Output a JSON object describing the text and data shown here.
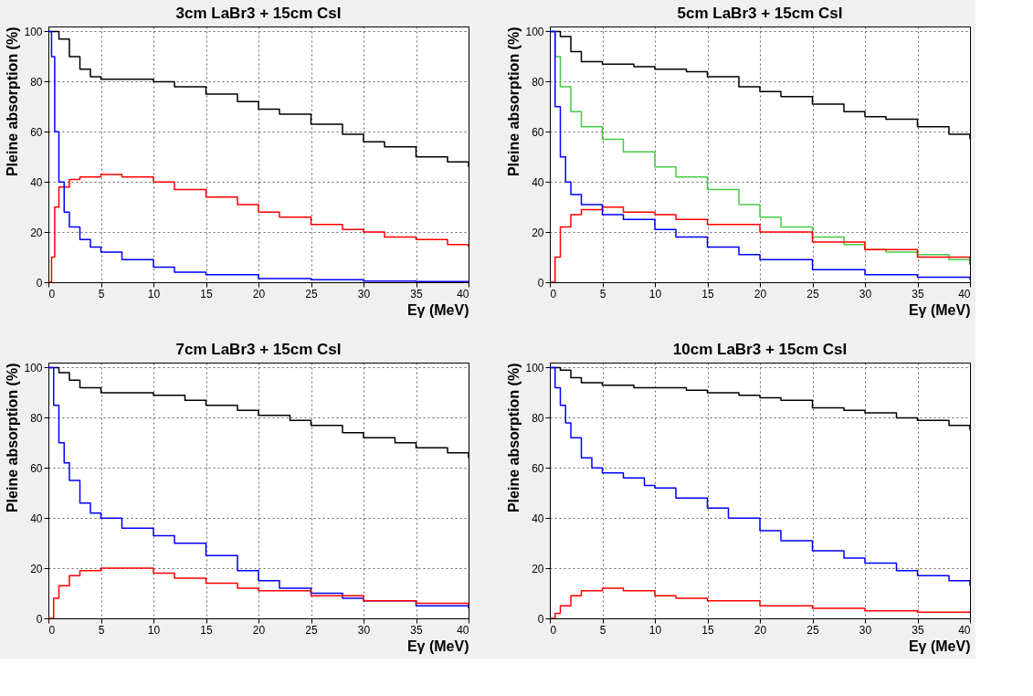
{
  "chart_data": [
    {
      "type": "step",
      "title": "3cm LaBr3 + 15cm CsI",
      "xlabel": "Eγ (MeV)",
      "ylabel": "Pleine absorption (%)",
      "xlim": [
        0,
        40
      ],
      "ylim": [
        0,
        102
      ],
      "xticks": [
        0,
        5,
        10,
        15,
        20,
        25,
        30,
        35,
        40
      ],
      "yticks": [
        0,
        20,
        40,
        60,
        80,
        100
      ],
      "grid": true,
      "series": [
        {
          "color": "#000000",
          "x": [
            0,
            0.5,
            1,
            2,
            3,
            4,
            5,
            7,
            10,
            12,
            15,
            18,
            20,
            22,
            25,
            28,
            30,
            32,
            35,
            38,
            40
          ],
          "values": [
            100,
            100,
            97,
            90,
            85,
            82,
            81,
            81,
            80,
            78,
            75,
            72,
            69,
            67,
            63,
            59,
            56,
            54,
            50,
            48,
            46
          ]
        },
        {
          "color": "#ff0000",
          "x": [
            0,
            0.3,
            0.6,
            1,
            2,
            3,
            5,
            7,
            10,
            12,
            15,
            18,
            20,
            22,
            25,
            28,
            30,
            32,
            35,
            38,
            40
          ],
          "values": [
            0,
            10,
            30,
            38,
            41,
            42,
            43,
            42,
            40,
            37,
            34,
            31,
            28,
            26,
            23,
            21,
            20,
            18,
            17,
            15,
            14
          ]
        },
        {
          "color": "#0000ff",
          "x": [
            0,
            0.3,
            0.6,
            1,
            1.5,
            2,
            3,
            4,
            5,
            7,
            10,
            12,
            15,
            20,
            25,
            30,
            35,
            40
          ],
          "values": [
            100,
            90,
            60,
            40,
            28,
            22,
            17,
            14,
            12,
            9,
            6,
            4,
            3,
            1.5,
            1,
            0.5,
            0.3,
            0.2
          ]
        }
      ]
    },
    {
      "type": "step",
      "title": "5cm LaBr3 + 15cm CsI",
      "xlabel": "Eγ (MeV)",
      "ylabel": "Pleine absorption (%)",
      "xlim": [
        0,
        40
      ],
      "ylim": [
        0,
        102
      ],
      "xticks": [
        0,
        5,
        10,
        15,
        20,
        25,
        30,
        35,
        40
      ],
      "yticks": [
        0,
        20,
        40,
        60,
        80,
        100
      ],
      "grid": true,
      "series": [
        {
          "color": "#000000",
          "x": [
            0,
            1,
            2,
            3,
            5,
            8,
            10,
            13,
            15,
            18,
            20,
            22,
            25,
            28,
            30,
            32,
            35,
            38,
            40
          ],
          "values": [
            100,
            98,
            92,
            88,
            87,
            86,
            85,
            84,
            82,
            78,
            76,
            74,
            71,
            68,
            66,
            65,
            62,
            59,
            57
          ]
        },
        {
          "color": "#44cc44",
          "x": [
            0,
            0.5,
            1,
            2,
            3,
            5,
            7,
            10,
            12,
            15,
            18,
            20,
            22,
            25,
            28,
            30,
            32,
            35,
            38,
            40
          ],
          "values": [
            100,
            90,
            78,
            68,
            62,
            57,
            52,
            46,
            42,
            37,
            31,
            26,
            22,
            18,
            15,
            13,
            12,
            11,
            9,
            8
          ]
        },
        {
          "color": "#ff0000",
          "x": [
            0,
            0.5,
            1,
            2,
            3,
            5,
            7,
            10,
            12,
            15,
            20,
            25,
            30,
            35,
            40
          ],
          "values": [
            0,
            10,
            22,
            27,
            29,
            30,
            28,
            27,
            25,
            23,
            20,
            16,
            13,
            10,
            7
          ]
        },
        {
          "color": "#0000ff",
          "x": [
            0,
            0.5,
            1,
            1.5,
            2,
            3,
            5,
            7,
            10,
            12,
            15,
            18,
            20,
            25,
            30,
            35,
            40
          ],
          "values": [
            100,
            70,
            50,
            40,
            35,
            31,
            27,
            25,
            21,
            18,
            14,
            11,
            9,
            5,
            3,
            2,
            1
          ]
        }
      ]
    },
    {
      "type": "step",
      "title": "7cm LaBr3 + 15cm CsI",
      "xlabel": "Eγ (MeV)",
      "ylabel": "Pleine absorption (%)",
      "xlim": [
        0,
        40
      ],
      "ylim": [
        0,
        102
      ],
      "xticks": [
        0,
        5,
        10,
        15,
        20,
        25,
        30,
        35,
        40
      ],
      "yticks": [
        0,
        20,
        40,
        60,
        80,
        100
      ],
      "grid": true,
      "series": [
        {
          "color": "#000000",
          "x": [
            0,
            1,
            2,
            3,
            5,
            8,
            10,
            13,
            15,
            18,
            20,
            23,
            25,
            28,
            30,
            33,
            35,
            38,
            40
          ],
          "values": [
            100,
            98,
            95,
            92,
            90,
            90,
            89,
            87,
            85,
            83,
            81,
            79,
            77,
            74,
            72,
            70,
            68,
            66,
            64
          ]
        },
        {
          "color": "#0000ff",
          "x": [
            0,
            0.5,
            1,
            1.5,
            2,
            3,
            4,
            5,
            7,
            10,
            12,
            15,
            18,
            20,
            22,
            25,
            28,
            30,
            35,
            40
          ],
          "values": [
            100,
            85,
            70,
            62,
            55,
            46,
            42,
            40,
            36,
            33,
            30,
            25,
            19,
            15,
            12,
            10,
            8,
            7,
            5,
            4
          ]
        },
        {
          "color": "#ff0000",
          "x": [
            0,
            0.5,
            1,
            2,
            3,
            5,
            7,
            10,
            12,
            15,
            18,
            20,
            25,
            30,
            35,
            40
          ],
          "values": [
            0,
            8,
            13,
            17,
            19,
            20,
            20,
            18,
            16,
            14,
            12,
            11,
            9,
            7,
            6,
            5
          ]
        }
      ]
    },
    {
      "type": "step",
      "title": "10cm LaBr3 + 15cm CsI",
      "xlabel": "Eγ (MeV)",
      "ylabel": "Pleine absorption (%)",
      "xlim": [
        0,
        40
      ],
      "ylim": [
        0,
        102
      ],
      "xticks": [
        0,
        5,
        10,
        15,
        20,
        25,
        30,
        35,
        40
      ],
      "yticks": [
        0,
        20,
        40,
        60,
        80,
        100
      ],
      "grid": true,
      "series": [
        {
          "color": "#000000",
          "x": [
            0,
            1,
            2,
            3,
            5,
            8,
            10,
            13,
            15,
            18,
            20,
            22,
            25,
            28,
            30,
            33,
            35,
            38,
            40
          ],
          "values": [
            100,
            99,
            96,
            94,
            93,
            92,
            92,
            91,
            90,
            89,
            88,
            87,
            84,
            83,
            82,
            80,
            79,
            77,
            75
          ]
        },
        {
          "color": "#0000ff",
          "x": [
            0,
            0.5,
            1,
            1.5,
            2,
            3,
            4,
            5,
            7,
            9,
            10,
            12,
            15,
            17,
            20,
            22,
            25,
            28,
            30,
            33,
            35,
            38,
            40
          ],
          "values": [
            100,
            92,
            85,
            78,
            72,
            64,
            60,
            58,
            56,
            53,
            52,
            48,
            44,
            40,
            35,
            31,
            27,
            24,
            22,
            19,
            17,
            15,
            13
          ]
        },
        {
          "color": "#ff0000",
          "x": [
            0,
            0.5,
            1,
            2,
            3,
            5,
            7,
            10,
            12,
            15,
            20,
            25,
            30,
            35,
            40
          ],
          "values": [
            0,
            2,
            5,
            9,
            11,
            12,
            11,
            9,
            8,
            7,
            5,
            4,
            3,
            2.5,
            2
          ]
        }
      ]
    }
  ]
}
